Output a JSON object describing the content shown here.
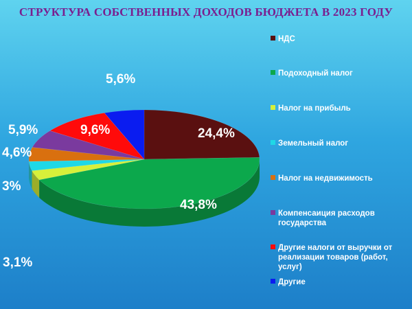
{
  "title": "СТРУКТУРА СОБСТВЕННЫХ ДОХОДОВ БЮДЖЕТА В 2023 ГОДУ",
  "chart_data": {
    "type": "pie",
    "title": "СТРУКТУРА СОБСТВЕННЫХ ДОХОДОВ БЮДЖЕТА В 2023 ГОДУ",
    "legend_position": "right",
    "categories": [
      "НДС",
      "Подоходный налог",
      "Налог на прибыль",
      "Земельный налог",
      "Налог на недвижимость",
      "Компенсаиция расходов государства",
      "Другие налоги от выручки от реализации товаров (работ, услуг)",
      "Другие"
    ],
    "values": [
      24.4,
      43.8,
      3.1,
      3.0,
      4.6,
      5.9,
      9.6,
      5.6
    ],
    "labels": [
      "24,4%",
      "43,8%",
      "3,1%",
      "3%",
      "4,6%",
      "5,9%",
      "9,6%",
      "5,6%"
    ],
    "colors": [
      "#5a1010",
      "#0ca84c",
      "#d7f03a",
      "#1fd8e6",
      "#d9700f",
      "#7a3a9e",
      "#ff0a0a",
      "#0a1cf0"
    ],
    "legend_lines": [
      [
        "НДС"
      ],
      [
        "Подоходный налог"
      ],
      [
        "Налог на прибыль"
      ],
      [
        "Земельный налог"
      ],
      [
        "Налог на недвижимость"
      ],
      [
        "Компенсаиция расходов",
        "государства"
      ],
      [
        "Другие налоги от выручки от",
        "реализации товаров (работ,",
        "услуг)"
      ],
      [
        "Другие"
      ]
    ]
  }
}
